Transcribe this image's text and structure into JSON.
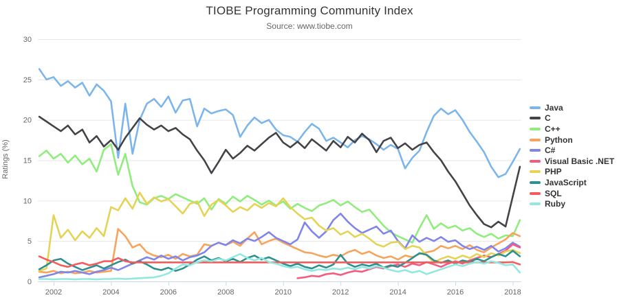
{
  "header": {
    "title": "TIOBE Programming Community Index",
    "subtitle": "Source: www.tiobe.com"
  },
  "chart_data": {
    "type": "line",
    "title": "TIOBE Programming Community Index",
    "subtitle": "Source: www.tiobe.com",
    "xlabel": "",
    "ylabel": "Ratings (%)",
    "xlim": [
      2001.45,
      2018.3
    ],
    "ylim": [
      0,
      30
    ],
    "x_ticks": [
      2002,
      2004,
      2006,
      2008,
      2010,
      2012,
      2014,
      2016,
      2018
    ],
    "y_ticks": [
      0,
      5,
      10,
      15,
      20,
      25,
      30
    ],
    "grid": true,
    "legend_position": "right",
    "x_start": 2001.5,
    "x_step": 0.25,
    "grid_color": "#e6e6e6",
    "axis_line_color": "#ccd6eb",
    "tick_label_color": "#666666",
    "series": [
      {
        "name": "Java",
        "color": "#7cb5ec",
        "values": [
          26.3,
          25.0,
          25.3,
          24.2,
          24.8,
          24.0,
          24.6,
          23.0,
          24.4,
          23.6,
          22.3,
          15.3,
          22.0,
          15.8,
          20.0,
          22.0,
          22.6,
          21.6,
          22.9,
          20.9,
          22.4,
          22.6,
          19.2,
          21.4,
          20.8,
          21.1,
          21.3,
          20.6,
          17.9,
          19.3,
          20.3,
          19.6,
          20.0,
          18.8,
          18.1,
          17.9,
          17.3,
          18.5,
          19.5,
          18.9,
          17.4,
          17.8,
          17.2,
          16.6,
          17.5,
          18.0,
          17.6,
          17.0,
          16.3,
          16.9,
          16.4,
          14.0,
          15.3,
          16.2,
          18.5,
          20.5,
          21.4,
          20.7,
          21.2,
          20.0,
          18.5,
          17.3,
          16.0,
          14.2,
          12.9,
          13.3,
          14.8,
          16.4
        ]
      },
      {
        "name": "C",
        "color": "#434348",
        "values": [
          20.4,
          19.8,
          19.2,
          18.6,
          19.3,
          18.2,
          18.8,
          17.2,
          18.0,
          16.7,
          17.5,
          16.3,
          17.8,
          19.0,
          20.2,
          19.4,
          18.8,
          19.3,
          18.6,
          19.0,
          18.2,
          17.6,
          16.2,
          15.0,
          13.4,
          14.8,
          16.3,
          15.2,
          15.9,
          16.8,
          16.2,
          17.0,
          17.8,
          18.4,
          17.2,
          16.6,
          17.3,
          16.5,
          17.6,
          16.9,
          16.2,
          17.4,
          16.6,
          17.9,
          17.2,
          18.3,
          17.5,
          16.0,
          17.4,
          17.8,
          16.5,
          17.1,
          16.3,
          16.9,
          17.2,
          16.0,
          15.0,
          13.6,
          12.4,
          10.9,
          9.4,
          8.2,
          7.1,
          6.7,
          7.4,
          6.8,
          10.5,
          14.2
        ]
      },
      {
        "name": "C++",
        "color": "#90ed7d",
        "values": [
          15.5,
          16.2,
          15.2,
          15.8,
          14.7,
          15.6,
          14.5,
          15.2,
          13.6,
          16.3,
          17.0,
          13.2,
          15.8,
          11.8,
          9.8,
          9.5,
          10.3,
          10.6,
          10.2,
          10.8,
          10.4,
          10.0,
          9.6,
          10.3,
          8.9,
          10.2,
          9.6,
          10.5,
          9.9,
          10.6,
          10.1,
          9.5,
          10.0,
          9.4,
          9.9,
          9.0,
          9.6,
          9.1,
          8.7,
          9.4,
          9.7,
          10.1,
          9.4,
          9.9,
          9.2,
          8.6,
          8.9,
          7.9,
          6.9,
          6.1,
          5.6,
          5.2,
          4.8,
          6.6,
          8.2,
          6.5,
          7.2,
          6.6,
          6.9,
          6.3,
          6.6,
          5.9,
          5.5,
          5.9,
          5.3,
          5.7,
          5.6,
          7.6
        ]
      },
      {
        "name": "Python",
        "color": "#f7a35c",
        "values": [
          1.2,
          1.1,
          1.3,
          1.0,
          1.2,
          1.0,
          1.1,
          1.3,
          1.1,
          1.2,
          1.3,
          6.5,
          5.6,
          4.2,
          4.6,
          3.6,
          3.2,
          3.0,
          3.3,
          2.8,
          3.4,
          3.1,
          3.3,
          4.6,
          4.4,
          4.8,
          4.5,
          4.9,
          4.4,
          5.3,
          6.1,
          4.6,
          5.0,
          5.3,
          4.8,
          4.4,
          4.0,
          3.6,
          3.5,
          3.2,
          3.0,
          3.3,
          3.1,
          3.6,
          3.9,
          3.4,
          3.7,
          3.2,
          2.9,
          3.1,
          2.7,
          3.2,
          3.0,
          3.4,
          3.6,
          3.8,
          4.4,
          4.1,
          4.4,
          4.0,
          4.5,
          3.9,
          3.6,
          4.2,
          4.7,
          5.2,
          6.0,
          5.6
        ]
      },
      {
        "name": "C#",
        "color": "#8085e9",
        "values": [
          0.5,
          0.7,
          0.9,
          1.2,
          1.1,
          1.3,
          1.1,
          0.9,
          1.2,
          1.4,
          1.7,
          1.4,
          1.8,
          2.2,
          2.6,
          3.0,
          2.7,
          3.2,
          2.8,
          3.1,
          2.6,
          3.0,
          3.2,
          3.6,
          4.4,
          4.8,
          4.5,
          5.1,
          4.7,
          5.3,
          5.0,
          5.5,
          6.1,
          5.4,
          5.0,
          4.6,
          5.2,
          7.3,
          6.2,
          5.4,
          6.2,
          7.6,
          8.4,
          7.4,
          6.6,
          6.0,
          6.4,
          6.8,
          5.9,
          6.3,
          5.0,
          4.1,
          5.7,
          4.9,
          5.4,
          5.0,
          5.5,
          4.9,
          5.1,
          4.4,
          4.0,
          4.3,
          3.9,
          4.4,
          3.7,
          4.1,
          4.8,
          4.3
        ]
      },
      {
        "name": "Visual Basic .NET",
        "color": "#f15c80",
        "values": [
          null,
          null,
          null,
          null,
          null,
          null,
          null,
          null,
          null,
          null,
          null,
          null,
          null,
          null,
          null,
          null,
          null,
          null,
          null,
          null,
          null,
          null,
          null,
          null,
          null,
          null,
          null,
          null,
          null,
          null,
          null,
          null,
          null,
          null,
          null,
          null,
          0.4,
          0.5,
          0.7,
          0.6,
          0.9,
          1.0,
          0.8,
          1.1,
          1.3,
          1.2,
          1.5,
          1.8,
          1.6,
          1.9,
          2.1,
          1.8,
          2.2,
          2.0,
          2.4,
          2.1,
          1.8,
          2.2,
          2.5,
          2.2,
          2.6,
          2.9,
          3.2,
          3.0,
          3.4,
          3.8,
          4.6,
          4.2
        ]
      },
      {
        "name": "PHP",
        "color": "#e4d354",
        "values": [
          1.3,
          1.6,
          8.2,
          5.4,
          6.4,
          5.1,
          6.2,
          5.4,
          6.6,
          5.6,
          9.2,
          8.8,
          10.3,
          9.0,
          11.0,
          9.6,
          10.4,
          9.9,
          10.2,
          9.3,
          8.4,
          9.6,
          9.9,
          8.1,
          9.5,
          10.1,
          9.4,
          8.6,
          9.2,
          8.8,
          9.6,
          9.1,
          9.7,
          9.3,
          10.3,
          9.2,
          8.4,
          7.7,
          7.9,
          6.9,
          6.3,
          6.6,
          5.8,
          6.2,
          5.5,
          5.9,
          5.3,
          4.6,
          4.3,
          4.8,
          4.9,
          4.0,
          4.4,
          4.2,
          3.2,
          2.4,
          2.8,
          3.1,
          2.8,
          3.2,
          2.9,
          3.4,
          3.0,
          3.5,
          3.2,
          3.7,
          3.9,
          3.5
        ]
      },
      {
        "name": "JavaScript",
        "color": "#2b908f",
        "values": [
          1.5,
          2.0,
          2.6,
          2.8,
          2.2,
          1.8,
          1.4,
          1.7,
          2.0,
          1.6,
          2.0,
          2.4,
          2.7,
          2.2,
          2.5,
          2.1,
          1.6,
          1.4,
          1.7,
          1.3,
          1.6,
          2.1,
          2.7,
          3.1,
          2.6,
          2.9,
          2.5,
          2.8,
          2.4,
          2.9,
          3.2,
          2.7,
          3.0,
          2.6,
          2.2,
          1.9,
          2.2,
          1.8,
          1.6,
          2.0,
          1.7,
          2.1,
          3.3,
          2.2,
          1.8,
          2.1,
          1.9,
          2.2,
          1.7,
          2.0,
          1.8,
          2.3,
          2.9,
          3.5,
          3.3,
          2.6,
          2.3,
          2.6,
          2.2,
          2.6,
          2.4,
          2.8,
          2.5,
          3.0,
          3.4,
          3.1,
          3.8,
          3.1
        ]
      },
      {
        "name": "SQL",
        "color": "#f45b5b",
        "values": [
          3.1,
          2.7,
          2.4,
          2.0,
          1.8,
          2.1,
          2.3,
          2.0,
          2.2,
          2.5,
          2.5,
          2.9,
          2.5,
          2.35,
          2.35,
          2.35,
          2.35,
          2.35,
          2.35,
          2.35,
          2.35,
          2.35,
          2.35,
          2.35,
          2.35,
          2.35,
          2.35,
          2.35,
          2.35,
          2.35,
          2.35,
          2.35,
          2.35,
          2.35,
          2.35,
          2.35,
          2.35,
          2.35,
          2.35,
          2.35,
          2.35,
          2.35,
          2.35,
          2.35,
          2.35,
          2.35,
          2.35,
          2.35,
          2.35,
          2.35,
          2.35,
          2.35,
          2.35,
          2.35,
          2.35,
          2.35,
          2.35,
          2.35,
          2.35,
          2.35,
          2.35,
          2.35,
          2.35,
          2.35,
          2.35,
          2.35,
          2.4,
          2.1
        ]
      },
      {
        "name": "Ruby",
        "color": "#91e8e1",
        "values": [
          0.3,
          0.3,
          0.25,
          0.3,
          0.3,
          0.25,
          0.3,
          0.3,
          0.25,
          0.3,
          0.3,
          0.35,
          0.3,
          0.35,
          0.4,
          0.45,
          0.5,
          0.7,
          1.0,
          1.6,
          2.1,
          2.0,
          2.4,
          2.6,
          2.5,
          2.8,
          2.6,
          3.0,
          3.4,
          2.9,
          2.6,
          2.9,
          2.4,
          2.2,
          1.9,
          1.7,
          1.8,
          1.5,
          1.3,
          1.5,
          1.4,
          1.6,
          1.5,
          1.7,
          1.5,
          1.8,
          1.6,
          1.9,
          1.7,
          1.4,
          1.2,
          1.4,
          1.1,
          1.3,
          0.9,
          1.2,
          1.5,
          1.8,
          2.1,
          1.9,
          2.2,
          2.4,
          2.2,
          2.5,
          2.3,
          2.0,
          2.1,
          1.1
        ]
      }
    ]
  }
}
